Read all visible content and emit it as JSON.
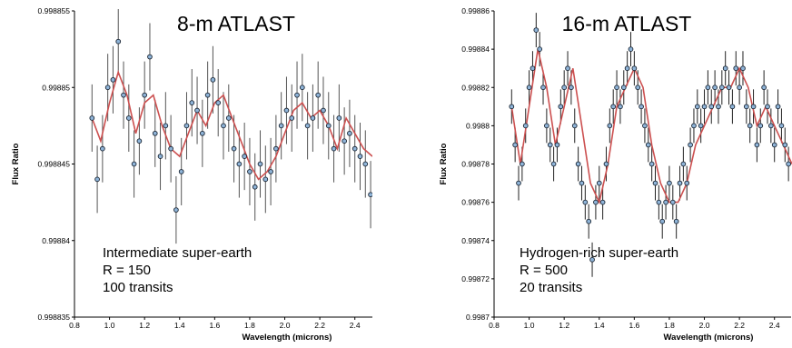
{
  "chart_data": [
    {
      "type": "scatter",
      "title": "8-m ATLAST",
      "xlabel": "Wavelength (microns)",
      "ylabel": "Flux Ratio",
      "xlim": [
        0.8,
        2.5
      ],
      "ylim": [
        0.998835,
        0.998855
      ],
      "xticks": [
        "0.8",
        "1.0",
        "1.2",
        "1.4",
        "1.6",
        "1.8",
        "2.0",
        "2.2",
        "2.4"
      ],
      "yticks": [
        "0.998835",
        "0.99884",
        "0.998845",
        "0.99885",
        "0.998855"
      ],
      "annotations": [
        "Intermediate super-earth",
        "R = 150",
        "100 transits"
      ],
      "grid": false,
      "colors": {
        "model": "#cc5050",
        "points": "#8fb4d8",
        "errorbars": "#555555"
      },
      "model": {
        "x": [
          0.9,
          0.95,
          1.0,
          1.05,
          1.1,
          1.15,
          1.2,
          1.25,
          1.3,
          1.35,
          1.4,
          1.45,
          1.5,
          1.55,
          1.6,
          1.65,
          1.7,
          1.75,
          1.8,
          1.85,
          1.9,
          1.95,
          2.0,
          2.05,
          2.1,
          2.15,
          2.2,
          2.25,
          2.3,
          2.35,
          2.4,
          2.45,
          2.5
        ],
        "y": [
          0.998848,
          0.9988465,
          0.998849,
          0.998851,
          0.9988495,
          0.998847,
          0.998849,
          0.9988495,
          0.9988475,
          0.998846,
          0.9988455,
          0.998847,
          0.9988485,
          0.9988475,
          0.998849,
          0.9988495,
          0.998848,
          0.9988465,
          0.998845,
          0.998844,
          0.9988445,
          0.9988455,
          0.998847,
          0.9988485,
          0.998849,
          0.998848,
          0.9988485,
          0.9988475,
          0.998846,
          0.998848,
          0.998847,
          0.998846,
          0.9988455
        ]
      },
      "points": {
        "x": [
          0.9,
          0.93,
          0.96,
          0.99,
          1.02,
          1.05,
          1.08,
          1.11,
          1.14,
          1.17,
          1.2,
          1.23,
          1.26,
          1.29,
          1.32,
          1.35,
          1.38,
          1.41,
          1.44,
          1.47,
          1.5,
          1.53,
          1.56,
          1.59,
          1.62,
          1.65,
          1.68,
          1.71,
          1.74,
          1.77,
          1.8,
          1.83,
          1.86,
          1.89,
          1.92,
          1.95,
          1.98,
          2.01,
          2.04,
          2.07,
          2.1,
          2.13,
          2.16,
          2.19,
          2.22,
          2.25,
          2.28,
          2.31,
          2.34,
          2.37,
          2.4,
          2.43,
          2.46,
          2.49
        ],
        "y": [
          0.998848,
          0.998844,
          0.998846,
          0.99885,
          0.9988505,
          0.998853,
          0.9988495,
          0.998848,
          0.998845,
          0.9988465,
          0.9988495,
          0.998852,
          0.998847,
          0.9988455,
          0.9988475,
          0.998846,
          0.998842,
          0.9988445,
          0.9988475,
          0.998849,
          0.9988485,
          0.998847,
          0.9988495,
          0.9988505,
          0.998849,
          0.9988475,
          0.998848,
          0.998846,
          0.998845,
          0.9988455,
          0.9988445,
          0.9988435,
          0.998845,
          0.998844,
          0.9988445,
          0.998846,
          0.9988475,
          0.9988485,
          0.998848,
          0.9988495,
          0.99885,
          0.9988475,
          0.998848,
          0.9988495,
          0.9988485,
          0.9988475,
          0.998846,
          0.998848,
          0.9988465,
          0.998847,
          0.998846,
          0.9988455,
          0.998845,
          0.998843
        ],
        "err": 2.2e-06
      }
    },
    {
      "type": "scatter",
      "title": "16-m ATLAST",
      "xlabel": "Wavelength (microns)",
      "ylabel": "Flux Ratio",
      "xlim": [
        0.8,
        2.5
      ],
      "ylim": [
        0.9987,
        0.99886
      ],
      "xticks": [
        "0.8",
        "1.0",
        "1.2",
        "1.4",
        "1.6",
        "1.8",
        "2.0",
        "2.2",
        "2.4"
      ],
      "yticks": [
        "0.9987",
        "0.99872",
        "0.99874",
        "0.99876",
        "0.99878",
        "0.9988",
        "0.99882",
        "0.99884",
        "0.99886"
      ],
      "annotations": [
        "Hydrogen-rich super-earth",
        "R = 500",
        "20 transits"
      ],
      "grid": false,
      "colors": {
        "model": "#cc5050",
        "points": "#8fb4d8",
        "errorbars": "#222222"
      },
      "model": {
        "x": [
          0.9,
          0.95,
          1.0,
          1.05,
          1.1,
          1.15,
          1.2,
          1.25,
          1.3,
          1.35,
          1.4,
          1.45,
          1.5,
          1.55,
          1.6,
          1.65,
          1.7,
          1.75,
          1.8,
          1.85,
          1.9,
          1.95,
          2.0,
          2.05,
          2.1,
          2.15,
          2.2,
          2.25,
          2.3,
          2.35,
          2.4,
          2.45,
          2.5
        ],
        "y": [
          0.99881,
          0.99878,
          0.99881,
          0.99884,
          0.99882,
          0.99879,
          0.99881,
          0.99883,
          0.9988,
          0.99877,
          0.99876,
          0.99878,
          0.99881,
          0.99882,
          0.99883,
          0.99882,
          0.99879,
          0.99877,
          0.99876,
          0.99876,
          0.99877,
          0.99879,
          0.9988,
          0.99881,
          0.99882,
          0.99882,
          0.99883,
          0.99882,
          0.9988,
          0.99881,
          0.9988,
          0.99879,
          0.99878
        ]
      },
      "points": {
        "x": [
          0.9,
          0.92,
          0.94,
          0.96,
          0.98,
          1.0,
          1.02,
          1.04,
          1.06,
          1.08,
          1.1,
          1.12,
          1.14,
          1.16,
          1.18,
          1.2,
          1.22,
          1.24,
          1.26,
          1.28,
          1.3,
          1.32,
          1.34,
          1.36,
          1.38,
          1.4,
          1.42,
          1.44,
          1.46,
          1.48,
          1.5,
          1.52,
          1.54,
          1.56,
          1.58,
          1.6,
          1.62,
          1.64,
          1.66,
          1.68,
          1.7,
          1.72,
          1.74,
          1.76,
          1.78,
          1.8,
          1.82,
          1.84,
          1.86,
          1.88,
          1.9,
          1.92,
          1.94,
          1.96,
          1.98,
          2.0,
          2.02,
          2.04,
          2.06,
          2.08,
          2.1,
          2.12,
          2.14,
          2.16,
          2.18,
          2.2,
          2.22,
          2.24,
          2.26,
          2.28,
          2.3,
          2.32,
          2.34,
          2.36,
          2.38,
          2.4,
          2.42,
          2.44,
          2.46,
          2.48
        ],
        "y": [
          0.99881,
          0.99879,
          0.99877,
          0.99878,
          0.9988,
          0.99882,
          0.99883,
          0.99885,
          0.99884,
          0.99882,
          0.9988,
          0.99879,
          0.99878,
          0.99879,
          0.99881,
          0.99882,
          0.99883,
          0.99882,
          0.9988,
          0.99878,
          0.99877,
          0.99876,
          0.99875,
          0.99873,
          0.99876,
          0.99877,
          0.99876,
          0.99878,
          0.9988,
          0.99881,
          0.99882,
          0.99881,
          0.99882,
          0.99883,
          0.99884,
          0.99883,
          0.99882,
          0.99881,
          0.9988,
          0.99879,
          0.99878,
          0.99877,
          0.99876,
          0.99875,
          0.99876,
          0.99877,
          0.99876,
          0.99875,
          0.99877,
          0.99878,
          0.99877,
          0.99879,
          0.9988,
          0.99881,
          0.9988,
          0.99881,
          0.99882,
          0.99881,
          0.99882,
          0.99881,
          0.99882,
          0.99883,
          0.99882,
          0.99881,
          0.99883,
          0.99882,
          0.99883,
          0.99881,
          0.9988,
          0.99881,
          0.99879,
          0.9988,
          0.99882,
          0.99881,
          0.9988,
          0.99879,
          0.99881,
          0.9988,
          0.99879,
          0.99878
        ],
        "err": 9e-06
      }
    }
  ]
}
